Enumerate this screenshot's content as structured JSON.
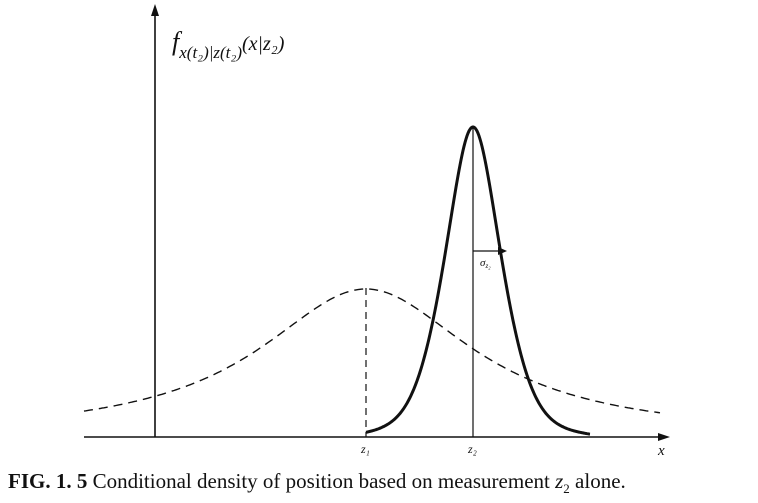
{
  "figure": {
    "ylabel": {
      "f": "f",
      "sub": "x(t₂)|z(t₂)",
      "args": "(x|z₂)"
    },
    "xlabel": "x",
    "ticks": {
      "z1": "z₁",
      "z2": "z₂"
    },
    "sigma_label": "σz₂"
  },
  "caption": {
    "fig_num": "FIG. 1. 5",
    "text": " Conditional density of position based on measurement ",
    "symbol": "z",
    "symbol_sub": "2",
    "tail": " alone."
  },
  "chart_data": {
    "type": "line",
    "series": [
      {
        "mean": "z₁",
        "style": "dashed",
        "relative_peak_height": 0.48
      },
      {
        "mean": "z₂",
        "style": "solid",
        "relative_peak_height": 1.0,
        "std_label": "σz₂"
      }
    ],
    "xlabel": "x",
    "ylabel": "f_{x(t₂)|z(t₂)}(x|z₂)"
  }
}
